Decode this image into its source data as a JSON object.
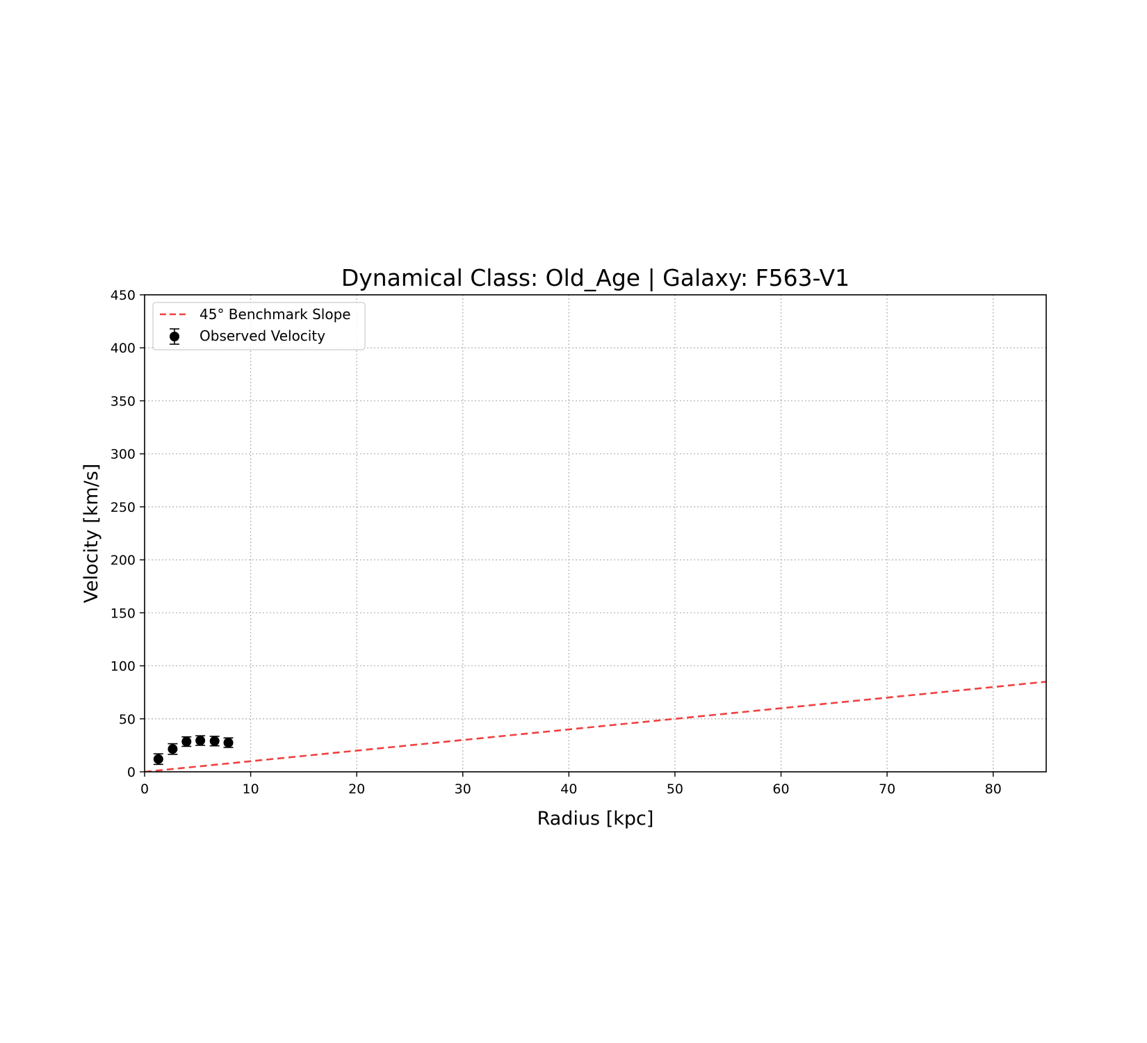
{
  "chart_data": {
    "type": "scatter",
    "title": "Dynamical Class: Old_Age | Galaxy: F563-V1",
    "xlabel": "Radius [kpc]",
    "ylabel": "Velocity [km/s]",
    "xlim": [
      0,
      85
    ],
    "ylim": [
      0,
      450
    ],
    "xticks": [
      0,
      10,
      20,
      30,
      40,
      50,
      60,
      70,
      80
    ],
    "yticks": [
      0,
      50,
      100,
      150,
      200,
      250,
      300,
      350,
      400,
      450
    ],
    "grid": true,
    "grid_style": "dotted",
    "legend_position": "upper left",
    "series": [
      {
        "name": "45° Benchmark Slope",
        "kind": "line",
        "style": "dashed",
        "color": "#f04040",
        "x": [
          0,
          85
        ],
        "y": [
          0,
          85
        ]
      },
      {
        "name": "Observed Velocity",
        "kind": "errorbar",
        "color": "#000000",
        "x": [
          1.3,
          2.65,
          3.95,
          5.25,
          6.6,
          7.9
        ],
        "y": [
          12,
          21.5,
          28.5,
          29.5,
          29,
          27.5
        ],
        "yerr": [
          5,
          5,
          4.5,
          4.5,
          4.5,
          4.5
        ]
      }
    ]
  }
}
